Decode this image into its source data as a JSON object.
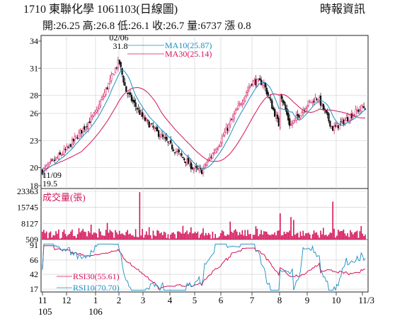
{
  "header": {
    "title": "1710  東聯化學 1061103(日線圖)",
    "source": "時報資訊",
    "quote": "開:26.25 高:26.8 低:26.1 收:26.7 量:6737 漲 0.8"
  },
  "chart_data": [
    {
      "type": "candlestick",
      "ylim": [
        18,
        34
      ],
      "y_ticks": [
        "34",
        "31",
        "28",
        "26",
        "23",
        "20",
        "18"
      ],
      "annotations": {
        "high_date": "02/06",
        "high_value": "31.8",
        "low_date": "11/09",
        "low_value": "19.5"
      },
      "legend": [
        {
          "label": "MA10(25.87)",
          "color": "#1a8fc4"
        },
        {
          "label": "MA30(25.14)",
          "color": "#d4145a"
        }
      ],
      "key_points": [
        {
          "period": "105-11",
          "close": 19.6
        },
        {
          "period": "105-12",
          "close": 22.0
        },
        {
          "period": "106-01",
          "close": 26.0
        },
        {
          "period": "106-02",
          "close": 31.8
        },
        {
          "period": "106-03",
          "close": 25.5
        },
        {
          "period": "106-04",
          "close": 22.5
        },
        {
          "period": "106-05",
          "close": 19.8
        },
        {
          "period": "106-06",
          "close": 23.0
        },
        {
          "period": "106-07",
          "close": 29.5
        },
        {
          "period": "106-08",
          "close": 24.5
        },
        {
          "period": "106-09",
          "close": 27.0
        },
        {
          "period": "106-10",
          "close": 24.5
        },
        {
          "period": "106-11",
          "close": 26.7
        }
      ]
    },
    {
      "type": "bar",
      "title": "成交量(張)",
      "y_ticks": [
        "23363",
        "15745",
        "8127",
        "509"
      ],
      "ylim": [
        509,
        23363
      ],
      "color": "#d4145a"
    },
    {
      "type": "line",
      "y_ticks": [
        "91",
        "66",
        "42",
        "17"
      ],
      "ylim": [
        17,
        91
      ],
      "series": [
        {
          "name": "RSI30(55.61)",
          "color": "#d4145a"
        },
        {
          "name": "RSI10(70.70)",
          "color": "#1a8fc4"
        }
      ]
    }
  ],
  "x_axis": {
    "ticks": [
      "11",
      "12",
      "1",
      "2",
      "3",
      "4",
      "5",
      "6",
      "7",
      "8",
      "9",
      "10",
      "11/3"
    ],
    "year_labels": [
      "105",
      "106"
    ]
  }
}
